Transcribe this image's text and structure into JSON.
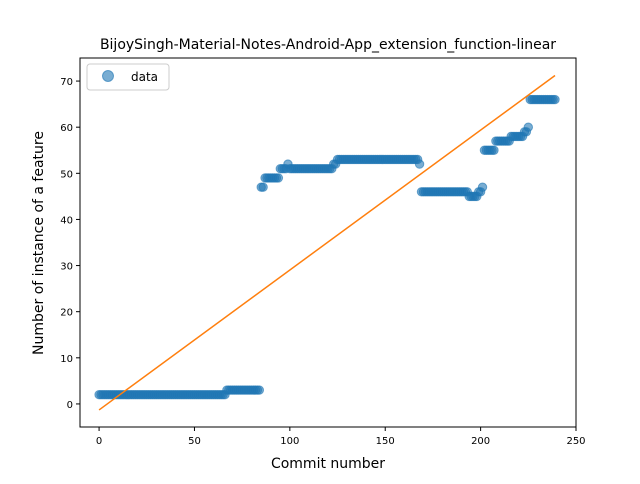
{
  "chart_data": {
    "type": "scatter",
    "title": "BijoySingh-Material-Notes-Android-App_extension_function-linear",
    "xlabel": "Commit number",
    "ylabel": "Number of instance of a feature",
    "xlim": [
      -10,
      250
    ],
    "ylim": [
      -5,
      75
    ],
    "xticks": [
      "0",
      "50",
      "100",
      "150",
      "200",
      "250"
    ],
    "yticks": [
      "0",
      "10",
      "20",
      "30",
      "40",
      "50",
      "60",
      "70"
    ],
    "grid": false,
    "legend": {
      "placement": "top-left",
      "entries": [
        "data"
      ]
    },
    "colors": {
      "scatter": "#1f77b4",
      "fit_line": "#ff7f0e"
    },
    "series": [
      {
        "name": "data",
        "kind": "scatter",
        "segments": [
          {
            "x_start": 0,
            "x_end": 66,
            "y": 2
          },
          {
            "x_start": 67,
            "x_end": 84,
            "y": 3
          },
          {
            "x_start": 85,
            "x_end": 86,
            "y": 47
          },
          {
            "x_start": 87,
            "x_end": 94,
            "y": 49
          },
          {
            "x_start": 95,
            "x_end": 98,
            "y": 51
          },
          {
            "x_start": 99,
            "x_end": 99,
            "y": 52
          },
          {
            "x_start": 100,
            "x_end": 122,
            "y": 51
          },
          {
            "x_start": 123,
            "x_end": 124,
            "y": 52
          },
          {
            "x_start": 125,
            "x_end": 167,
            "y": 53
          },
          {
            "x_start": 168,
            "x_end": 168,
            "y": 52
          },
          {
            "x_start": 169,
            "x_end": 193,
            "y": 46
          },
          {
            "x_start": 194,
            "x_end": 198,
            "y": 45
          },
          {
            "x_start": 199,
            "x_end": 200,
            "y": 46
          },
          {
            "x_start": 201,
            "x_end": 201,
            "y": 47
          },
          {
            "x_start": 202,
            "x_end": 207,
            "y": 55
          },
          {
            "x_start": 208,
            "x_end": 215,
            "y": 57
          },
          {
            "x_start": 216,
            "x_end": 222,
            "y": 58
          },
          {
            "x_start": 223,
            "x_end": 224,
            "y": 59
          },
          {
            "x_start": 225,
            "x_end": 225,
            "y": 60
          },
          {
            "x_start": 226,
            "x_end": 239,
            "y": 66
          }
        ]
      },
      {
        "name": "",
        "kind": "line",
        "x": [
          0,
          239
        ],
        "y": [
          -1.3,
          71.2
        ]
      }
    ]
  }
}
